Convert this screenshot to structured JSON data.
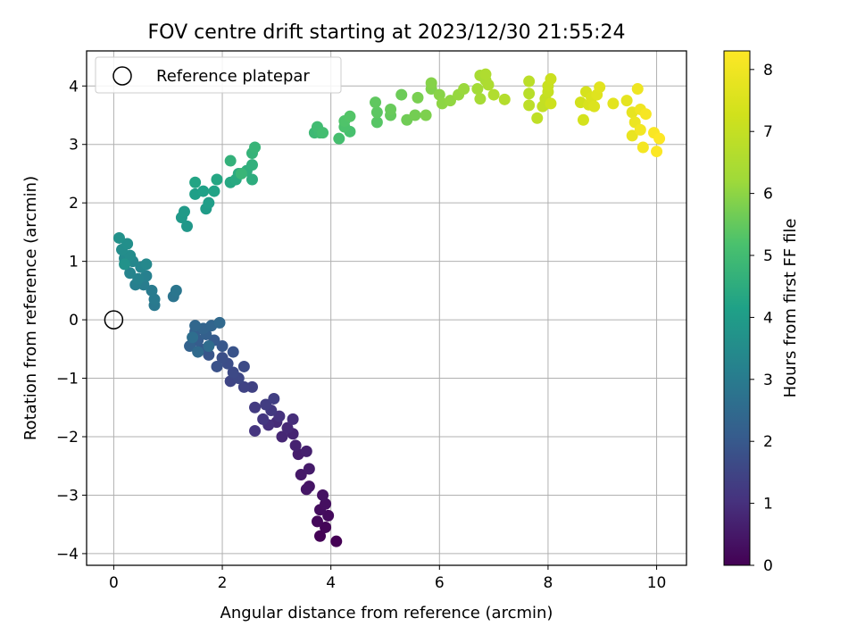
{
  "chart_data": {
    "type": "scatter",
    "title": "FOV centre drift starting at 2023/12/30 21:55:24",
    "xlabel": "Angular distance from reference (arcmin)",
    "ylabel": "Rotation from reference (arcmin)",
    "xlim": [
      -0.5,
      10.55
    ],
    "ylim": [
      -4.2,
      4.6
    ],
    "xticks": [
      0,
      2,
      4,
      6,
      8,
      10
    ],
    "yticks": [
      -4,
      -3,
      -2,
      -1,
      0,
      1,
      2,
      3,
      4
    ],
    "grid": true,
    "legend": {
      "placement": "top-left",
      "entries": [
        "Reference platepar"
      ]
    },
    "reference_point": {
      "x": 0,
      "y": 0,
      "label": "Reference platepar"
    },
    "colorbar": {
      "label": "Hours from first FF file",
      "min": 0,
      "max": 8.3,
      "ticks": [
        0,
        1,
        2,
        3,
        4,
        5,
        6,
        7,
        8
      ],
      "colormap": "viridis"
    },
    "points": [
      {
        "x": 4.1,
        "y": -3.79,
        "t": 0.0
      },
      {
        "x": 3.8,
        "y": -3.7,
        "t": 0.05
      },
      {
        "x": 3.9,
        "y": -3.55,
        "t": 0.1
      },
      {
        "x": 3.75,
        "y": -3.45,
        "t": 0.15
      },
      {
        "x": 3.95,
        "y": -3.35,
        "t": 0.2
      },
      {
        "x": 3.8,
        "y": -3.25,
        "t": 0.25
      },
      {
        "x": 3.9,
        "y": -3.15,
        "t": 0.3
      },
      {
        "x": 3.85,
        "y": -3.0,
        "t": 0.35
      },
      {
        "x": 3.6,
        "y": -2.85,
        "t": 0.4
      },
      {
        "x": 3.55,
        "y": -2.9,
        "t": 0.45
      },
      {
        "x": 3.45,
        "y": -2.65,
        "t": 0.5
      },
      {
        "x": 3.6,
        "y": -2.55,
        "t": 0.55
      },
      {
        "x": 3.4,
        "y": -2.3,
        "t": 0.6
      },
      {
        "x": 3.55,
        "y": -2.25,
        "t": 0.65
      },
      {
        "x": 3.35,
        "y": -2.15,
        "t": 0.7
      },
      {
        "x": 3.3,
        "y": -1.95,
        "t": 0.75
      },
      {
        "x": 3.1,
        "y": -2.0,
        "t": 0.8
      },
      {
        "x": 3.2,
        "y": -1.85,
        "t": 0.85
      },
      {
        "x": 3.0,
        "y": -1.75,
        "t": 0.9
      },
      {
        "x": 3.3,
        "y": -1.7,
        "t": 0.95
      },
      {
        "x": 2.85,
        "y": -1.8,
        "t": 1.0
      },
      {
        "x": 3.05,
        "y": -1.65,
        "t": 1.05
      },
      {
        "x": 2.6,
        "y": -1.9,
        "t": 1.1
      },
      {
        "x": 2.75,
        "y": -1.7,
        "t": 1.15
      },
      {
        "x": 2.9,
        "y": -1.55,
        "t": 1.2
      },
      {
        "x": 2.6,
        "y": -1.5,
        "t": 1.25
      },
      {
        "x": 2.8,
        "y": -1.45,
        "t": 1.3
      },
      {
        "x": 2.95,
        "y": -1.35,
        "t": 1.35
      },
      {
        "x": 2.55,
        "y": -1.15,
        "t": 1.4
      },
      {
        "x": 2.4,
        "y": -1.15,
        "t": 1.45
      },
      {
        "x": 2.15,
        "y": -1.05,
        "t": 1.5
      },
      {
        "x": 2.3,
        "y": -1.0,
        "t": 1.55
      },
      {
        "x": 2.2,
        "y": -0.9,
        "t": 1.6
      },
      {
        "x": 2.4,
        "y": -0.8,
        "t": 1.65
      },
      {
        "x": 2.1,
        "y": -0.75,
        "t": 1.7
      },
      {
        "x": 2.0,
        "y": -0.65,
        "t": 1.75
      },
      {
        "x": 1.9,
        "y": -0.8,
        "t": 1.8
      },
      {
        "x": 2.2,
        "y": -0.55,
        "t": 1.85
      },
      {
        "x": 1.75,
        "y": -0.6,
        "t": 1.9
      },
      {
        "x": 2.0,
        "y": -0.45,
        "t": 1.95
      },
      {
        "x": 1.6,
        "y": -0.5,
        "t": 2.0
      },
      {
        "x": 1.85,
        "y": -0.35,
        "t": 2.05
      },
      {
        "x": 1.55,
        "y": -0.35,
        "t": 2.1
      },
      {
        "x": 1.5,
        "y": -0.2,
        "t": 2.15
      },
      {
        "x": 1.7,
        "y": -0.25,
        "t": 2.2
      },
      {
        "x": 1.4,
        "y": -0.45,
        "t": 2.25
      },
      {
        "x": 1.65,
        "y": -0.15,
        "t": 2.3
      },
      {
        "x": 1.8,
        "y": -0.1,
        "t": 2.35
      },
      {
        "x": 1.5,
        "y": -0.1,
        "t": 2.4
      },
      {
        "x": 1.95,
        "y": -0.05,
        "t": 2.45
      },
      {
        "x": 1.55,
        "y": -0.55,
        "t": 2.5
      },
      {
        "x": 1.75,
        "y": -0.45,
        "t": 2.55
      },
      {
        "x": 1.45,
        "y": -0.3,
        "t": 2.6
      },
      {
        "x": 1.1,
        "y": 0.4,
        "t": 2.8
      },
      {
        "x": 1.15,
        "y": 0.5,
        "t": 2.85
      },
      {
        "x": 0.75,
        "y": 0.25,
        "t": 2.9
      },
      {
        "x": 0.75,
        "y": 0.35,
        "t": 2.95
      },
      {
        "x": 0.7,
        "y": 0.5,
        "t": 3.0
      },
      {
        "x": 0.55,
        "y": 0.6,
        "t": 3.05
      },
      {
        "x": 0.4,
        "y": 0.6,
        "t": 3.1
      },
      {
        "x": 0.6,
        "y": 0.75,
        "t": 3.15
      },
      {
        "x": 0.45,
        "y": 0.7,
        "t": 3.2
      },
      {
        "x": 0.3,
        "y": 0.8,
        "t": 3.25
      },
      {
        "x": 0.5,
        "y": 0.9,
        "t": 3.3
      },
      {
        "x": 0.35,
        "y": 1.0,
        "t": 3.35
      },
      {
        "x": 0.6,
        "y": 0.95,
        "t": 3.4
      },
      {
        "x": 0.2,
        "y": 1.05,
        "t": 3.45
      },
      {
        "x": 0.3,
        "y": 1.1,
        "t": 3.5
      },
      {
        "x": 0.15,
        "y": 1.2,
        "t": 3.55
      },
      {
        "x": 0.25,
        "y": 1.3,
        "t": 3.6
      },
      {
        "x": 0.1,
        "y": 1.4,
        "t": 3.65
      },
      {
        "x": 0.2,
        "y": 0.95,
        "t": 3.7
      },
      {
        "x": 1.35,
        "y": 1.6,
        "t": 3.85
      },
      {
        "x": 1.25,
        "y": 1.75,
        "t": 3.9
      },
      {
        "x": 1.3,
        "y": 1.85,
        "t": 3.95
      },
      {
        "x": 1.7,
        "y": 1.9,
        "t": 4.0
      },
      {
        "x": 1.75,
        "y": 2.0,
        "t": 4.05
      },
      {
        "x": 1.5,
        "y": 2.15,
        "t": 4.1
      },
      {
        "x": 1.65,
        "y": 2.2,
        "t": 4.15
      },
      {
        "x": 1.85,
        "y": 2.2,
        "t": 4.2
      },
      {
        "x": 1.5,
        "y": 2.35,
        "t": 4.25
      },
      {
        "x": 1.9,
        "y": 2.4,
        "t": 4.3
      },
      {
        "x": 2.15,
        "y": 2.35,
        "t": 4.35
      },
      {
        "x": 2.25,
        "y": 2.4,
        "t": 4.4
      },
      {
        "x": 2.3,
        "y": 2.5,
        "t": 4.45
      },
      {
        "x": 2.55,
        "y": 2.4,
        "t": 4.5
      },
      {
        "x": 2.45,
        "y": 2.55,
        "t": 4.55
      },
      {
        "x": 2.55,
        "y": 2.65,
        "t": 4.6
      },
      {
        "x": 2.15,
        "y": 2.72,
        "t": 4.65
      },
      {
        "x": 2.55,
        "y": 2.85,
        "t": 4.7
      },
      {
        "x": 2.6,
        "y": 2.95,
        "t": 4.75
      },
      {
        "x": 2.35,
        "y": 2.5,
        "t": 4.8
      },
      {
        "x": 3.7,
        "y": 3.2,
        "t": 4.9
      },
      {
        "x": 3.8,
        "y": 3.2,
        "t": 4.95
      },
      {
        "x": 3.75,
        "y": 3.3,
        "t": 5.0
      },
      {
        "x": 3.85,
        "y": 3.2,
        "t": 5.05
      },
      {
        "x": 4.15,
        "y": 3.1,
        "t": 5.1
      },
      {
        "x": 4.35,
        "y": 3.22,
        "t": 5.15
      },
      {
        "x": 4.25,
        "y": 3.3,
        "t": 5.2
      },
      {
        "x": 4.25,
        "y": 3.4,
        "t": 5.25
      },
      {
        "x": 4.35,
        "y": 3.48,
        "t": 5.3
      },
      {
        "x": 4.85,
        "y": 3.38,
        "t": 5.35
      },
      {
        "x": 4.85,
        "y": 3.55,
        "t": 5.4
      },
      {
        "x": 4.82,
        "y": 3.72,
        "t": 5.45
      },
      {
        "x": 5.1,
        "y": 3.5,
        "t": 5.5
      },
      {
        "x": 5.1,
        "y": 3.6,
        "t": 5.55
      },
      {
        "x": 5.3,
        "y": 3.85,
        "t": 5.6
      },
      {
        "x": 5.4,
        "y": 3.42,
        "t": 5.65
      },
      {
        "x": 5.55,
        "y": 3.5,
        "t": 5.7
      },
      {
        "x": 5.6,
        "y": 3.8,
        "t": 5.75
      },
      {
        "x": 5.75,
        "y": 3.5,
        "t": 5.8
      },
      {
        "x": 5.85,
        "y": 3.95,
        "t": 5.85
      },
      {
        "x": 5.85,
        "y": 4.05,
        "t": 5.9
      },
      {
        "x": 6.0,
        "y": 3.85,
        "t": 5.95
      },
      {
        "x": 6.05,
        "y": 3.7,
        "t": 6.0
      },
      {
        "x": 6.2,
        "y": 3.75,
        "t": 6.05
      },
      {
        "x": 6.35,
        "y": 3.85,
        "t": 6.1
      },
      {
        "x": 6.45,
        "y": 3.95,
        "t": 6.15
      },
      {
        "x": 6.7,
        "y": 3.95,
        "t": 6.3
      },
      {
        "x": 6.75,
        "y": 3.78,
        "t": 6.35
      },
      {
        "x": 6.75,
        "y": 4.18,
        "t": 6.4
      },
      {
        "x": 6.85,
        "y": 4.1,
        "t": 6.45
      },
      {
        "x": 6.9,
        "y": 4.02,
        "t": 6.5
      },
      {
        "x": 6.85,
        "y": 4.2,
        "t": 6.55
      },
      {
        "x": 7.0,
        "y": 3.85,
        "t": 6.6
      },
      {
        "x": 7.2,
        "y": 3.77,
        "t": 6.65
      },
      {
        "x": 7.65,
        "y": 3.87,
        "t": 6.75
      },
      {
        "x": 7.65,
        "y": 4.08,
        "t": 6.8
      },
      {
        "x": 7.65,
        "y": 3.67,
        "t": 6.85
      },
      {
        "x": 7.8,
        "y": 3.45,
        "t": 6.9
      },
      {
        "x": 7.9,
        "y": 3.65,
        "t": 6.95
      },
      {
        "x": 7.95,
        "y": 3.78,
        "t": 7.0
      },
      {
        "x": 8.0,
        "y": 3.9,
        "t": 7.05
      },
      {
        "x": 8.0,
        "y": 4.0,
        "t": 7.1
      },
      {
        "x": 8.05,
        "y": 4.12,
        "t": 7.15
      },
      {
        "x": 8.05,
        "y": 3.7,
        "t": 7.2
      },
      {
        "x": 8.6,
        "y": 3.72,
        "t": 7.3
      },
      {
        "x": 8.65,
        "y": 3.42,
        "t": 7.35
      },
      {
        "x": 8.7,
        "y": 3.9,
        "t": 7.4
      },
      {
        "x": 8.75,
        "y": 3.68,
        "t": 7.45
      },
      {
        "x": 8.8,
        "y": 3.8,
        "t": 7.5
      },
      {
        "x": 8.85,
        "y": 3.65,
        "t": 7.55
      },
      {
        "x": 8.9,
        "y": 3.85,
        "t": 7.6
      },
      {
        "x": 8.95,
        "y": 3.98,
        "t": 7.65
      },
      {
        "x": 9.2,
        "y": 3.7,
        "t": 7.7
      },
      {
        "x": 9.45,
        "y": 3.75,
        "t": 7.75
      },
      {
        "x": 9.55,
        "y": 3.55,
        "t": 7.8
      },
      {
        "x": 9.55,
        "y": 3.15,
        "t": 7.85
      },
      {
        "x": 9.6,
        "y": 3.38,
        "t": 7.9
      },
      {
        "x": 9.65,
        "y": 3.95,
        "t": 7.95
      },
      {
        "x": 9.7,
        "y": 3.6,
        "t": 8.0
      },
      {
        "x": 9.7,
        "y": 3.25,
        "t": 8.05
      },
      {
        "x": 9.75,
        "y": 2.95,
        "t": 8.1
      },
      {
        "x": 9.8,
        "y": 3.52,
        "t": 8.15
      },
      {
        "x": 9.95,
        "y": 3.2,
        "t": 8.2
      },
      {
        "x": 10.0,
        "y": 2.88,
        "t": 8.25
      },
      {
        "x": 10.05,
        "y": 3.1,
        "t": 8.3
      }
    ]
  }
}
